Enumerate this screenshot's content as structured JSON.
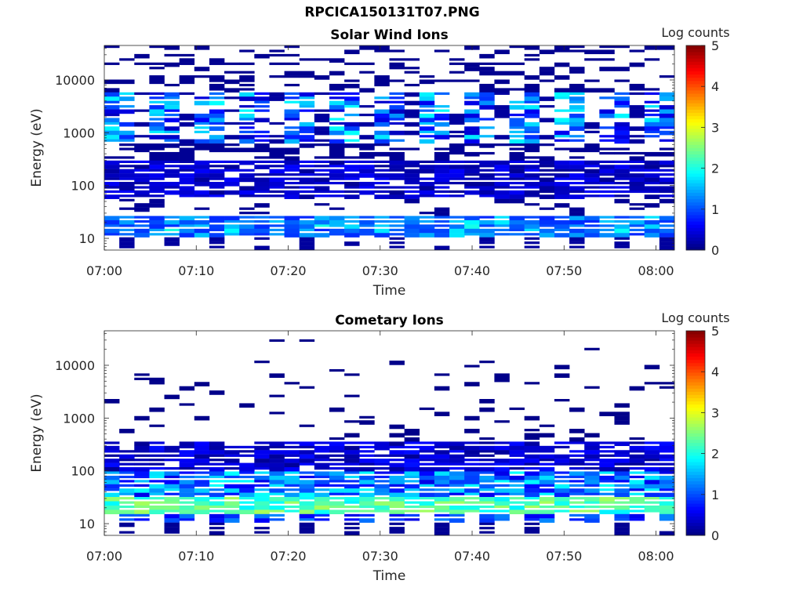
{
  "figure": {
    "title": "RPCICA150131T07.PNG"
  },
  "chart_data": [
    {
      "type": "heatmap",
      "title": "Solar Wind Ions",
      "xlabel": "Time",
      "ylabel": "Energy (eV)",
      "yscale": "log",
      "ylim": [
        6,
        45000
      ],
      "xlim": [
        "07:00",
        "08:02"
      ],
      "x_ticks": [
        "07:00",
        "07:10",
        "07:20",
        "07:30",
        "07:40",
        "07:50",
        "08:00"
      ],
      "y_ticks": [
        "10",
        "100",
        "1000",
        "10000"
      ],
      "colorbar": {
        "label": "Log counts",
        "ticks": [
          "0",
          "1",
          "2",
          "3",
          "4",
          "5"
        ],
        "range": [
          0,
          5
        ],
        "colormap": "jet"
      },
      "grid": false,
      "energy_band_intensity_log_counts": [
        {
          "band": "~10-28 eV",
          "value": 1.3
        },
        {
          "band": "~60-300 eV",
          "value": 0.5
        },
        {
          "band": "~500-6000 eV",
          "value": 1.2
        },
        {
          "band": "~6000-45000 eV",
          "value": 0.1
        }
      ]
    },
    {
      "type": "heatmap",
      "title": "Cometary Ions",
      "xlabel": "Time",
      "ylabel": "Energy (eV)",
      "yscale": "log",
      "ylim": [
        6,
        45000
      ],
      "xlim": [
        "07:00",
        "08:02"
      ],
      "x_ticks": [
        "07:00",
        "07:10",
        "07:20",
        "07:30",
        "07:40",
        "07:50",
        "08:00"
      ],
      "y_ticks": [
        "10",
        "100",
        "1000",
        "10000"
      ],
      "colorbar": {
        "label": "Log counts",
        "ticks": [
          "0",
          "1",
          "2",
          "3",
          "4",
          "5"
        ],
        "range": [
          0,
          5
        ],
        "colormap": "jet"
      },
      "grid": false,
      "energy_band_intensity_log_counts": [
        {
          "band": "~10-15 eV",
          "value": 1.0
        },
        {
          "band": "~15-30 eV",
          "value": 2.3
        },
        {
          "band": "~30-100 eV",
          "value": 1.2
        },
        {
          "band": "~100-300 eV",
          "value": 0.4
        },
        {
          "band": "~300-10000 eV",
          "value": 0.05
        }
      ]
    }
  ]
}
